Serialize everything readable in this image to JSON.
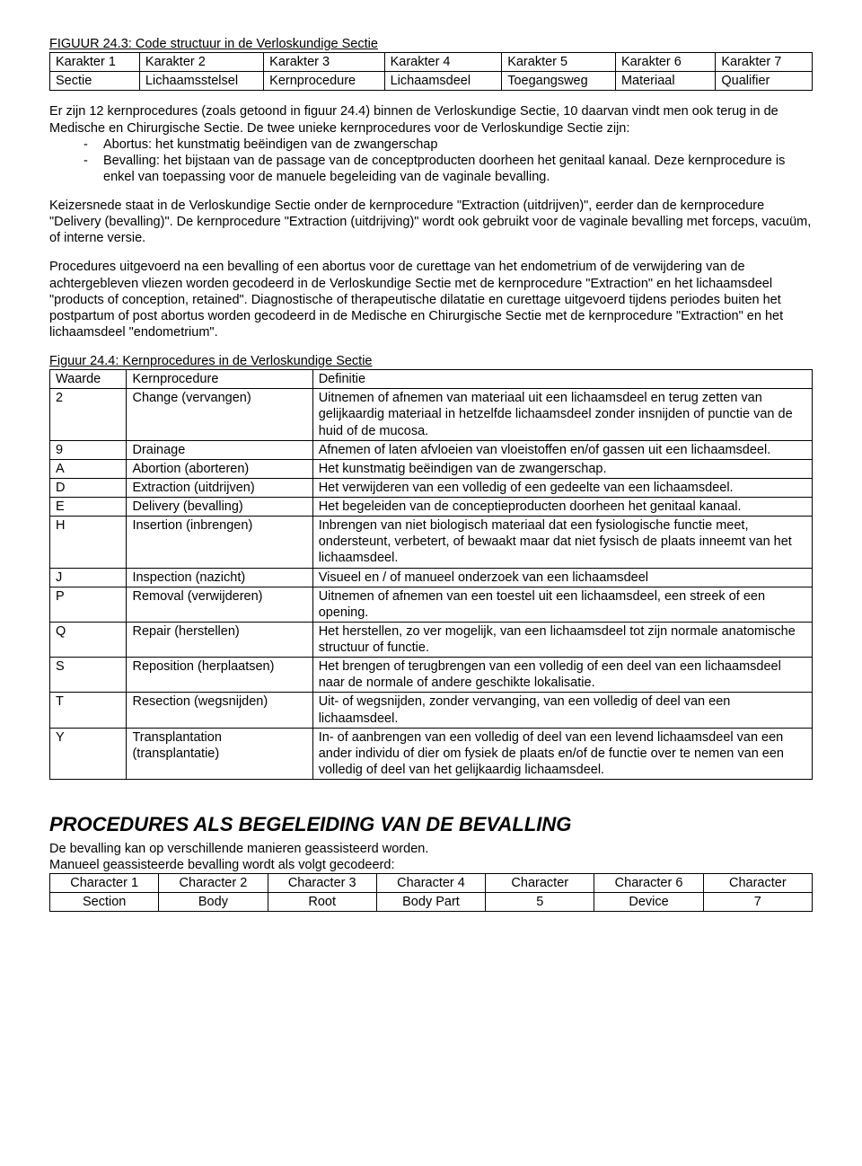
{
  "fig1": {
    "title": "FIGUUR 24.3: Code structuur in de Verloskundige Sectie",
    "h": [
      "Karakter 1",
      "Karakter 2",
      "Karakter 3",
      "Karakter 4",
      "Karakter 5",
      "Karakter 6",
      "Karakter 7"
    ],
    "r": [
      "Sectie",
      "Lichaamsstelsel",
      "Kernprocedure",
      "Lichaamsdeel",
      "Toegangsweg",
      "Materiaal",
      "Qualifier"
    ]
  },
  "para1a": "Er zijn 12 kernprocedures (zoals getoond in figuur 24.4) binnen de Verloskundige Sectie, 10 daarvan vindt men ook terug in de Medische en Chirurgische Sectie. De twee unieke kernprocedures voor de Verloskundige Sectie zijn:",
  "b1": "Abortus: het kunstmatig beëindigen van de zwangerschap",
  "b2": "Bevalling: het bijstaan van de passage van de conceptproducten doorheen het genitaal kanaal. Deze kernprocedure is enkel van toepassing voor de manuele begeleiding van de vaginale bevalling.",
  "para2": "Keizersnede staat in de Verloskundige Sectie onder de kernprocedure \"Extraction (uitdrijven)\", eerder dan de kernprocedure \"Delivery (bevalling)\". De kernprocedure \"Extraction (uitdrijving)\" wordt ook gebruikt voor de vaginale bevalling met forceps, vacuüm, of interne versie.",
  "para3": "Procedures uitgevoerd na een bevalling of een abortus voor de curettage van het endometrium of de verwijdering van de achtergebleven vliezen worden gecodeerd in de Verloskundige Sectie met de kernprocedure \"Extraction\" en het lichaamsdeel \"products of conception, retained\". Diagnostische of therapeutische dilatatie en curettage uitgevoerd tijdens periodes buiten het postpartum of post abortus worden gecodeerd in de Medische en Chirurgische Sectie met de kernprocedure \"Extraction\" en het lichaamsdeel \"endometrium\".",
  "fig2": {
    "title": "Figuur 24.4: Kernprocedures in de Verloskundige Sectie",
    "head": [
      "Waarde",
      "Kernprocedure",
      "Definitie"
    ],
    "rows": [
      [
        "2",
        "Change (vervangen)",
        "Uitnemen of afnemen van materiaal uit een lichaamsdeel en terug zetten van gelijkaardig materiaal in hetzelfde lichaamsdeel zonder insnijden of punctie van de huid of de mucosa."
      ],
      [
        "9",
        "Drainage",
        "Afnemen of laten afvloeien van vloeistoffen en/of gassen uit een lichaamsdeel."
      ],
      [
        "A",
        "Abortion (aborteren)",
        "Het kunstmatig beëindigen van de zwangerschap."
      ],
      [
        "D",
        "Extraction (uitdrijven)",
        "Het verwijderen van een volledig of een gedeelte van een lichaamsdeel."
      ],
      [
        "E",
        "Delivery (bevalling)",
        "Het begeleiden van de conceptieproducten doorheen het genitaal kanaal."
      ],
      [
        "H",
        "Insertion (inbrengen)",
        "Inbrengen van niet biologisch materiaal dat een fysiologische functie meet, ondersteunt, verbetert, of bewaakt maar dat niet fysisch de plaats inneemt van het lichaamsdeel."
      ],
      [
        "J",
        "Inspection (nazicht)",
        "Visueel en / of manueel onderzoek van een lichaamsdeel"
      ],
      [
        "P",
        "Removal (verwijderen)",
        "Uitnemen of afnemen van een toestel uit een lichaamsdeel, een streek of een opening."
      ],
      [
        "Q",
        "Repair (herstellen)",
        "Het herstellen, zo ver mogelijk, van een lichaamsdeel tot zijn normale anatomische structuur of functie."
      ],
      [
        "S",
        "Reposition (herplaatsen)",
        "Het brengen of terugbrengen van een volledig of een deel van een lichaamsdeel naar de normale of andere geschikte lokalisatie."
      ],
      [
        "T",
        "Resection (wegsnijden)",
        "Uit- of wegsnijden, zonder vervanging, van een volledig of deel van een lichaamsdeel."
      ],
      [
        "Y",
        "Transplantation (transplantatie)",
        "In- of aanbrengen van een volledig of deel van een levend lichaamsdeel van een ander individu of dier om fysiek de plaats en/of de functie over te nemen van een volledig of deel van het gelijkaardig lichaamsdeel."
      ]
    ]
  },
  "sec_head": "PROCEDURES ALS BEGELEIDING VAN DE BEVALLING",
  "p4a": "De bevalling kan op verschillende manieren geassisteerd worden.",
  "p4b": "Manueel geassisteerde bevalling wordt als volgt gecodeerd:",
  "fig3": {
    "r1": [
      "Character 1",
      "Character 2",
      "Character 3",
      "Character 4",
      "Character",
      "Character 6",
      "Character"
    ],
    "r2": [
      "Section",
      "Body",
      "Root",
      "Body Part",
      "5",
      "Device",
      "7"
    ]
  }
}
